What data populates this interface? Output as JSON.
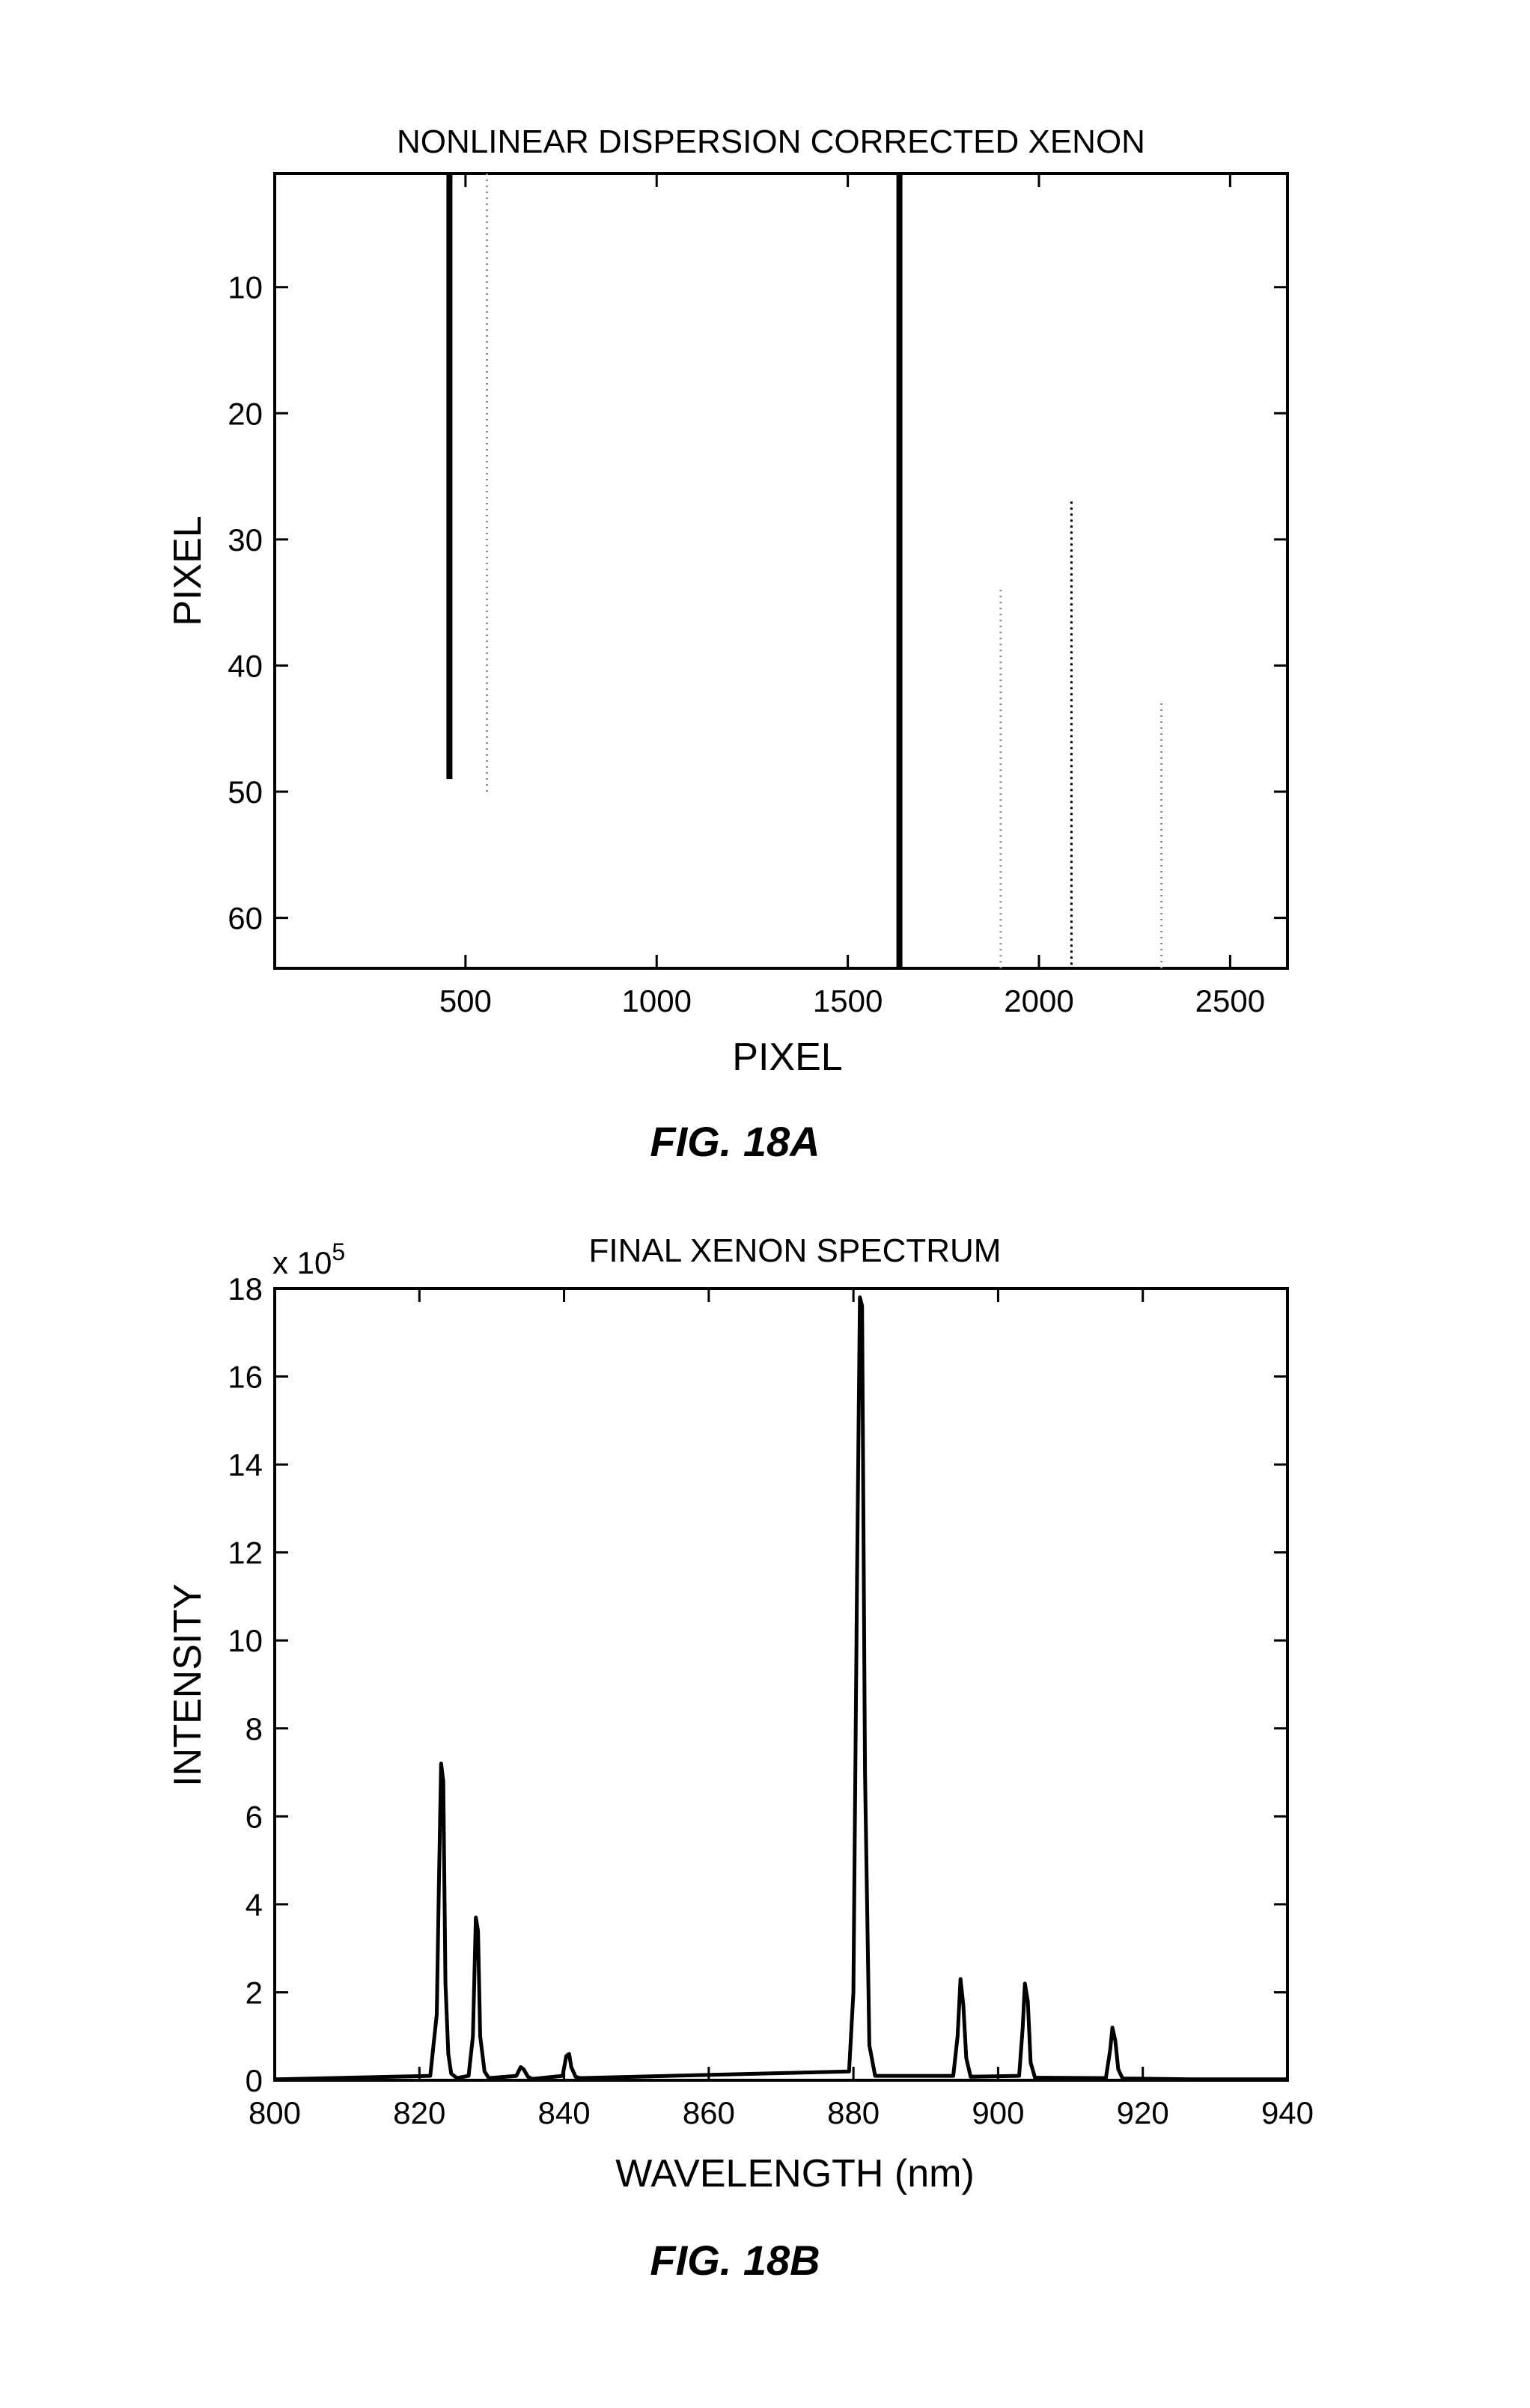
{
  "figures": [
    {
      "caption": "FIG. 18A"
    },
    {
      "caption": "FIG. 18B"
    }
  ],
  "chart_data": [
    {
      "type": "heatmap",
      "title": "NONLINEAR DISPERSION CORRECTED XENON",
      "xlabel": "PIXEL",
      "ylabel": "PIXEL",
      "xlim": [
        1,
        2650
      ],
      "ylim": [
        64,
        1
      ],
      "y_inverted": true,
      "xticks": [
        500,
        1000,
        1500,
        2000,
        2500
      ],
      "yticks": [
        10,
        20,
        30,
        40,
        50,
        60
      ],
      "grid": false,
      "colors": {
        "line": "#000000",
        "faint": "#8a8a8a"
      },
      "lines": [
        {
          "x": 458,
          "y_top": 1,
          "y_bottom": 49,
          "strength": "strong"
        },
        {
          "x": 556,
          "y_top": 1,
          "y_bottom": 50,
          "strength": "faint"
        },
        {
          "x": 1635,
          "y_top": 1,
          "y_bottom": 64,
          "strength": "strong"
        },
        {
          "x": 1900,
          "y_top": 34,
          "y_bottom": 64,
          "strength": "faint"
        },
        {
          "x": 2085,
          "y_top": 27,
          "y_bottom": 64,
          "strength": "medium"
        },
        {
          "x": 2320,
          "y_top": 43,
          "y_bottom": 64,
          "strength": "faint"
        }
      ]
    },
    {
      "type": "line",
      "title": "FINAL XENON SPECTRUM",
      "xlabel": "WAVELENGTH (nm)",
      "ylabel": "INTENSITY",
      "y_multiplier_label": "x 10",
      "y_multiplier_exponent": "5",
      "xlim": [
        800,
        940
      ],
      "ylim": [
        0,
        18
      ],
      "xticks": [
        800,
        820,
        840,
        860,
        880,
        900,
        920,
        940
      ],
      "yticks": [
        0,
        2,
        4,
        6,
        8,
        10,
        12,
        14,
        16,
        18
      ],
      "grid": false,
      "series": [
        {
          "x": [
            800,
            821.5,
            822.4,
            822.7,
            823.0,
            823.3,
            823.6,
            824.0,
            824.4,
            825.2,
            826.8,
            827.4,
            827.8,
            828.1,
            828.4,
            829.0,
            829.6,
            833.4,
            834.0,
            834.4,
            835.0,
            835.6,
            839.8,
            840.3,
            840.7,
            841.0,
            841.6,
            842.2,
            879.4,
            880.0,
            880.5,
            880.9,
            881.2,
            881.6,
            882.2,
            883.0,
            893.8,
            894.4,
            894.8,
            895.2,
            895.6,
            896.2,
            902.9,
            903.4,
            903.7,
            904.1,
            904.5,
            905.1,
            914.9,
            915.5,
            915.8,
            916.2,
            916.6,
            917.2,
            927,
            940
          ],
          "y": [
            0.02,
            0.1,
            1.5,
            4.5,
            7.2,
            6.8,
            2.2,
            0.6,
            0.15,
            0.05,
            0.1,
            1.0,
            3.7,
            3.4,
            1.0,
            0.2,
            0.05,
            0.1,
            0.3,
            0.25,
            0.08,
            0.03,
            0.1,
            0.55,
            0.6,
            0.3,
            0.08,
            0.05,
            0.2,
            2.0,
            11.5,
            17.8,
            17.6,
            7.0,
            0.8,
            0.1,
            0.1,
            1.0,
            2.3,
            1.7,
            0.5,
            0.08,
            0.1,
            1.2,
            2.2,
            1.8,
            0.4,
            0.06,
            0.05,
            0.7,
            1.2,
            0.9,
            0.25,
            0.04,
            0.02,
            0.02
          ]
        }
      ]
    }
  ]
}
